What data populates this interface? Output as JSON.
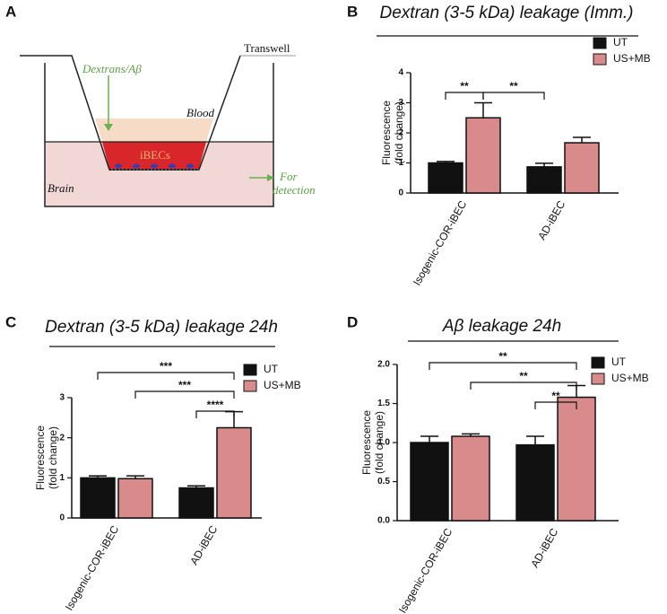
{
  "diagram": {
    "panel_label": "A",
    "inflow": "Dextrans/Aβ",
    "transwell": "Transwell",
    "blood": "Blood",
    "cells": "iBECs",
    "brain": "Brain",
    "outflow": [
      "For",
      "detection"
    ]
  },
  "chart_data": [
    {
      "type": "bar",
      "panel_label": "B",
      "title": "Dextran (3-5 kDa) leakage (Imm.)",
      "y_label": [
        "Fluorescence",
        "(fold change)"
      ],
      "categories": [
        "Isogenic-COR-iBEC",
        "AD-iBEC"
      ],
      "series": [
        {
          "name": "UT",
          "color": "#111111",
          "values": [
            1.0,
            0.87
          ],
          "errors": [
            0.05,
            0.12
          ]
        },
        {
          "name": "US+MB",
          "color": "#d98a8a",
          "values": [
            2.5,
            1.67
          ],
          "errors": [
            0.5,
            0.18
          ]
        }
      ],
      "ylim": [
        0,
        4
      ],
      "yticks": [
        0,
        1,
        2,
        3,
        4
      ],
      "legend": "upper right",
      "significance": [
        {
          "label": "**",
          "between": [
            [
              0,
              0
            ],
            [
              1,
              0
            ]
          ]
        },
        {
          "label": "**",
          "between": [
            [
              1,
              0
            ],
            [
              0,
              1
            ]
          ]
        }
      ]
    },
    {
      "type": "bar",
      "panel_label": "C",
      "title": "Dextran (3-5 kDa) leakage 24h",
      "y_label": [
        "Fluorescence",
        "(fold change)"
      ],
      "categories": [
        "Isogenic-COR-iBEC",
        "AD-iBEC"
      ],
      "series": [
        {
          "name": "UT",
          "color": "#111111",
          "values": [
            1.0,
            0.75
          ],
          "errors": [
            0.05,
            0.05
          ]
        },
        {
          "name": "US+MB",
          "color": "#d98a8a",
          "values": [
            0.98,
            2.25
          ],
          "errors": [
            0.07,
            0.4
          ]
        }
      ],
      "ylim": [
        0,
        3
      ],
      "yticks": [
        0,
        1,
        2,
        3
      ],
      "legend": "upper right",
      "significance": [
        {
          "label": "***",
          "between": [
            [
              0,
              0
            ],
            [
              1,
              1
            ]
          ]
        },
        {
          "label": "***",
          "between": [
            [
              1,
              0
            ],
            [
              1,
              1
            ]
          ]
        },
        {
          "label": "****",
          "between": [
            [
              0,
              1
            ],
            [
              1,
              1
            ]
          ]
        }
      ]
    },
    {
      "type": "bar",
      "panel_label": "D",
      "title": "Aβ leakage 24h",
      "y_label": [
        "Fluorescence",
        "(fold change)"
      ],
      "categories": [
        "Isogenic-COR-iBEC",
        "AD-iBEC"
      ],
      "series": [
        {
          "name": "UT",
          "color": "#111111",
          "values": [
            1.0,
            0.97
          ],
          "errors": [
            0.08,
            0.11
          ]
        },
        {
          "name": "US+MB",
          "color": "#d98a8a",
          "values": [
            1.08,
            1.58
          ],
          "errors": [
            0.03,
            0.15
          ]
        }
      ],
      "ylim": [
        0,
        2
      ],
      "yticks": [
        {
          "value": 0,
          "label": "0.0"
        },
        0.5,
        {
          "value": 1,
          "label": "1.0"
        },
        1.5,
        {
          "value": 2,
          "label": "2.0"
        }
      ],
      "legend": "upper right",
      "significance": [
        {
          "label": "**",
          "between": [
            [
              0,
              0
            ],
            [
              1,
              1
            ]
          ]
        },
        {
          "label": "**",
          "between": [
            [
              1,
              0
            ],
            [
              1,
              1
            ]
          ]
        },
        {
          "label": "**",
          "between": [
            [
              0,
              1
            ],
            [
              1,
              1
            ]
          ]
        }
      ]
    }
  ]
}
